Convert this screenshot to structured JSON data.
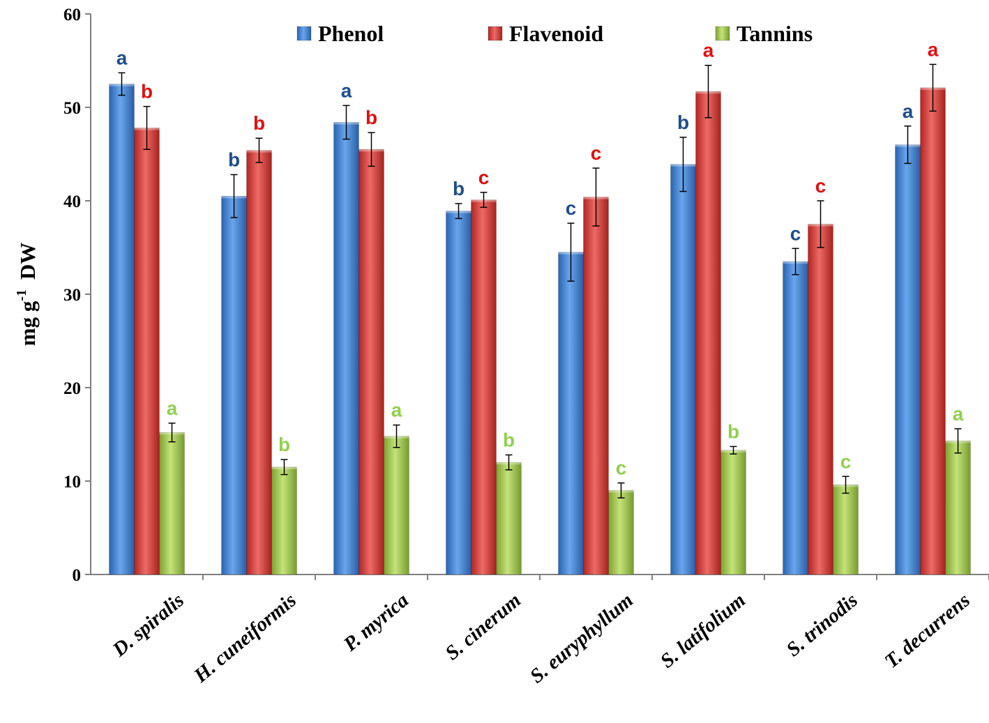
{
  "chart_data": {
    "type": "bar",
    "title": "",
    "xlabel": "",
    "ylabel": "mg g",
    "ylabel_superscript": "-1",
    "ylabel_suffix": "DW",
    "ylim": [
      0,
      60
    ],
    "yticks": [
      "0",
      "10",
      "20",
      "30",
      "40",
      "50",
      "60"
    ],
    "grid": false,
    "legend_position": "top",
    "categories": [
      "D. spiralis",
      "H. cuneiformis",
      "P. myrica",
      "S. cinerum",
      "S. euryphyllum",
      "S. latifolium",
      "S. trinodis",
      "T. decurrens"
    ],
    "series": [
      {
        "name": "Phenol",
        "color": "#3f7fd0",
        "label_color": "#1f4e8c",
        "values": [
          52.5,
          40.5,
          48.4,
          38.9,
          34.5,
          43.9,
          33.5,
          46.0
        ],
        "errors": [
          1.2,
          2.3,
          1.8,
          0.8,
          3.1,
          2.9,
          1.4,
          2.0
        ],
        "letters": [
          "a",
          "b",
          "a",
          "b",
          "c",
          "b",
          "c",
          "a"
        ]
      },
      {
        "name": "Flavenoid",
        "color": "#d63a36",
        "label_color": "#e01010",
        "values": [
          47.8,
          45.4,
          45.5,
          40.1,
          40.4,
          51.7,
          37.5,
          52.1
        ],
        "errors": [
          2.3,
          1.3,
          1.8,
          0.8,
          3.1,
          2.8,
          2.5,
          2.5
        ],
        "letters": [
          "b",
          "b",
          "b",
          "c",
          "c",
          "a",
          "c",
          "a"
        ]
      },
      {
        "name": "Tannins",
        "color": "#9cc34a",
        "label_color": "#92d050",
        "values": [
          15.2,
          11.5,
          14.8,
          12.0,
          9.0,
          13.3,
          9.6,
          14.3
        ],
        "errors": [
          1.0,
          0.8,
          1.2,
          0.8,
          0.8,
          0.4,
          0.9,
          1.3
        ],
        "letters": [
          "a",
          "b",
          "a",
          "b",
          "c",
          "b",
          "c",
          "a"
        ]
      }
    ]
  }
}
